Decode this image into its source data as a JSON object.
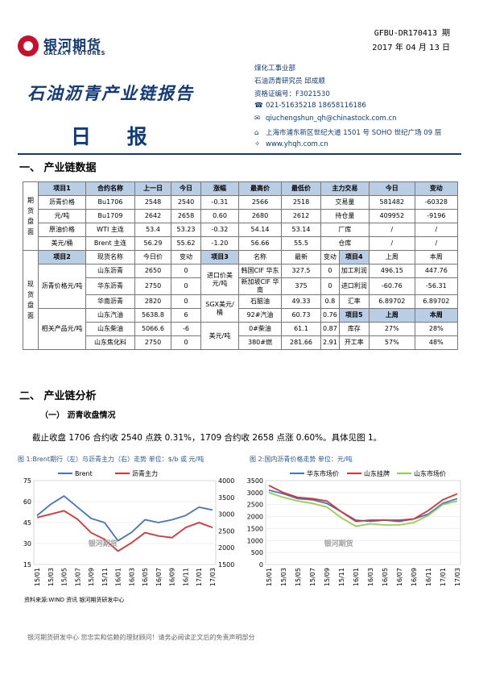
{
  "header": {
    "logo_cn": "银河期货",
    "logo_en": "GALAXY FUTURES",
    "doc_id": "GFBU-DR170413 期",
    "date": "2017 年 04 月 13 日",
    "title": "石油沥青产业链报告",
    "subtitle": "日  报"
  },
  "contact": {
    "dept": "煤化工事业部",
    "analyst": "石油沥青研究员  邱成顺",
    "cert": "资格证编号：F3021530",
    "phone": "021-51635218    18658116186",
    "email": "qiuchengshun_qh@chinastock.com.cn",
    "address": "上海市浦东新区世纪大道 1501 号 SOHO 世纪广场 09 层",
    "website": "www.yhqh.com.cn",
    "icons": [
      "phone-icon",
      "mail-icon",
      "location-icon",
      "web-icon"
    ]
  },
  "sections": {
    "s1": "一、  产业链数据",
    "s2": "二、  产业链分析",
    "s2_1": "（一） 沥青收盘情况"
  },
  "futures": {
    "side_label": "期货盘面",
    "headers": [
      "项目1",
      "合约名称",
      "上一日",
      "今日",
      "涨幅",
      "最高价",
      "最低价",
      "主力交易",
      "",
      "今日",
      "变动"
    ],
    "rows": [
      [
        "沥青价格",
        "Bu1706",
        "2548",
        "2540",
        "-0.31",
        "2566",
        "2518",
        "交易量",
        "581482",
        "-60328"
      ],
      [
        "元/吨",
        "Bu1709",
        "2642",
        "2658",
        "0.60",
        "2680",
        "2612",
        "持仓量",
        "409952",
        "-9196"
      ],
      [
        "原油价格",
        "WTI 主连",
        "53.4",
        "53.23",
        "-0.32",
        "54.14",
        "53.14",
        "厂库",
        "/",
        "/"
      ],
      [
        "美元/桶",
        "Brent 主连",
        "56.29",
        "55.62",
        "-1.20",
        "56.66",
        "55.5",
        "仓库",
        "/",
        "/"
      ]
    ]
  },
  "spot": {
    "side_label": "现货盘面",
    "headers": [
      "项目2",
      "现货名称",
      "今日价",
      "变动",
      "项目3",
      "名称",
      "最新",
      "变动",
      "项目4",
      "上周",
      "本周"
    ],
    "group1_label": "沥青价格元/吨",
    "group2_label": "相关产品元/吨",
    "group3a_label": "进口价美元/吨",
    "group3b_label": "SGX美元/桶",
    "group3c_label": "美元/吨",
    "item5_label": "项目5",
    "rows": [
      [
        "山东沥青",
        "2650",
        "0",
        "韩国CIF 华东",
        "327.5",
        "0",
        "加工利润",
        "496.15",
        "447.76"
      ],
      [
        "华东沥青",
        "2750",
        "0",
        "新加坡CIF 华南",
        "375",
        "0",
        "进口利润",
        "-60.76",
        "-56.31"
      ],
      [
        "华南沥青",
        "2820",
        "0",
        "石脑油",
        "49.33",
        "0.8",
        "汇率",
        "6.89702",
        "6.89702"
      ],
      [
        "山东汽油",
        "5638.8",
        "6",
        "92#汽油",
        "60.73",
        "0.76",
        "",
        "上周",
        "本周"
      ],
      [
        "山东柴油",
        "5066.6",
        "-6",
        "0#柴油",
        "61.1",
        "0.87",
        "库存",
        "27%",
        "28%"
      ],
      [
        "山东焦化料",
        "2750",
        "0",
        "380#燃",
        "281.66",
        "2.91",
        "开工率",
        "57%",
        "48%"
      ]
    ]
  },
  "analysis_text": "截止收盘 1706 合约收 2540 点跌 0.31%，1709 合约收 2658 点涨 0.60%。具体见图 1。",
  "chart_data": [
    {
      "type": "line",
      "title": "图 1:Brent期行（左）与沥青主力（右）走势   单位：$/b 或 元/吨",
      "x": [
        "15/01",
        "15/03",
        "15/05",
        "15/07",
        "15/09",
        "15/11",
        "16/01",
        "16/03",
        "16/05",
        "16/07",
        "16/09",
        "16/11",
        "17/01",
        "17/03"
      ],
      "ylim_left": [
        15,
        75
      ],
      "yticks_left": [
        15,
        30,
        45,
        60,
        75
      ],
      "ylim_right": [
        1500,
        4000
      ],
      "yticks_right": [
        1500,
        2000,
        2500,
        3000,
        3500,
        4000
      ],
      "legend": "top",
      "series": [
        {
          "name": "Brent",
          "axis": "left",
          "color": "#4472c4",
          "values": [
            50,
            58,
            64,
            56,
            48,
            45,
            32,
            38,
            47,
            45,
            47,
            50,
            56,
            54
          ]
        },
        {
          "name": "沥青主力",
          "axis": "right",
          "color": "#e03030",
          "values": [
            2900,
            3000,
            3100,
            2850,
            2450,
            2250,
            1900,
            2150,
            2450,
            2350,
            2300,
            2600,
            2750,
            2600
          ]
        }
      ]
    },
    {
      "type": "line",
      "title": "图 2:国内沥青价格走势   单位：元/吨",
      "x": [
        "15/01",
        "15/03",
        "15/05",
        "15/07",
        "15/09",
        "15/11",
        "16/01",
        "16/03",
        "16/05",
        "16/07",
        "16/09",
        "16/11",
        "17/01",
        "17/03"
      ],
      "ylim": [
        0,
        3500
      ],
      "yticks": [
        0,
        500,
        1000,
        1500,
        2000,
        2500,
        3000,
        3500
      ],
      "legend": "top",
      "series": [
        {
          "name": "华东市场价",
          "color": "#4472c4",
          "values": [
            3100,
            2950,
            2750,
            2700,
            2550,
            2200,
            1850,
            1800,
            1850,
            1850,
            1900,
            2100,
            2550,
            2750
          ]
        },
        {
          "name": "山东挂牌",
          "color": "#e03030",
          "values": [
            3300,
            3000,
            2800,
            2750,
            2650,
            2200,
            1800,
            1850,
            1850,
            1800,
            1900,
            2250,
            2700,
            2950
          ]
        },
        {
          "name": "山东市场价",
          "color": "#92d050",
          "values": [
            3000,
            2800,
            2650,
            2550,
            2400,
            1950,
            1600,
            1700,
            1650,
            1650,
            1750,
            2050,
            2500,
            2650
          ]
        }
      ]
    }
  ],
  "source_note": "资料来源:WIND 资讯   银河期货研发中心",
  "footer": "银河期货研发中心  您忠实和信赖的理财顾问！请务必阅读正文后的免责声明部分",
  "watermark": "银河期货"
}
